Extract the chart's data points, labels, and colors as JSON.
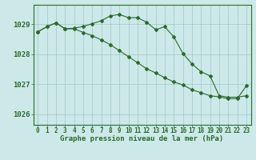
{
  "line1_x": [
    0,
    1,
    2,
    3,
    4,
    5,
    6,
    7,
    8,
    9,
    10,
    11,
    12,
    13,
    14,
    15,
    16,
    17,
    18,
    19,
    20,
    21,
    22,
    23
  ],
  "line1_y": [
    1028.75,
    1028.92,
    1029.05,
    1028.85,
    1028.87,
    1028.93,
    1029.02,
    1029.12,
    1029.28,
    1029.33,
    1029.22,
    1029.22,
    1029.07,
    1028.82,
    1028.92,
    1028.58,
    1028.03,
    1027.68,
    1027.42,
    1027.28,
    1026.62,
    1026.57,
    1026.57,
    1026.62
  ],
  "line2_x": [
    0,
    1,
    2,
    3,
    4,
    5,
    6,
    7,
    8,
    9,
    10,
    11,
    12,
    13,
    14,
    15,
    16,
    17,
    18,
    19,
    20,
    21,
    22,
    23
  ],
  "line2_y": [
    1028.75,
    1028.92,
    1029.05,
    1028.85,
    1028.85,
    1028.73,
    1028.62,
    1028.48,
    1028.32,
    1028.12,
    1027.92,
    1027.72,
    1027.52,
    1027.38,
    1027.22,
    1027.08,
    1026.98,
    1026.82,
    1026.72,
    1026.62,
    1026.58,
    1026.52,
    1026.52,
    1026.95
  ],
  "line_color": "#2d6a2d",
  "bg_color": "#cce8e8",
  "grid_color": "#a0c8c8",
  "xlabel": "Graphe pression niveau de la mer (hPa)",
  "ylabel_ticks": [
    1026,
    1027,
    1028,
    1029
  ],
  "xlim": [
    -0.5,
    23.5
  ],
  "ylim": [
    1025.65,
    1029.65
  ],
  "xticks": [
    0,
    1,
    2,
    3,
    4,
    5,
    6,
    7,
    8,
    9,
    10,
    11,
    12,
    13,
    14,
    15,
    16,
    17,
    18,
    19,
    20,
    21,
    22,
    23
  ],
  "xlabel_fontsize": 6.5,
  "tick_fontsize": 5.5,
  "ytick_fontsize": 6.5,
  "marker": "D",
  "markersize": 2.0,
  "linewidth": 0.8
}
